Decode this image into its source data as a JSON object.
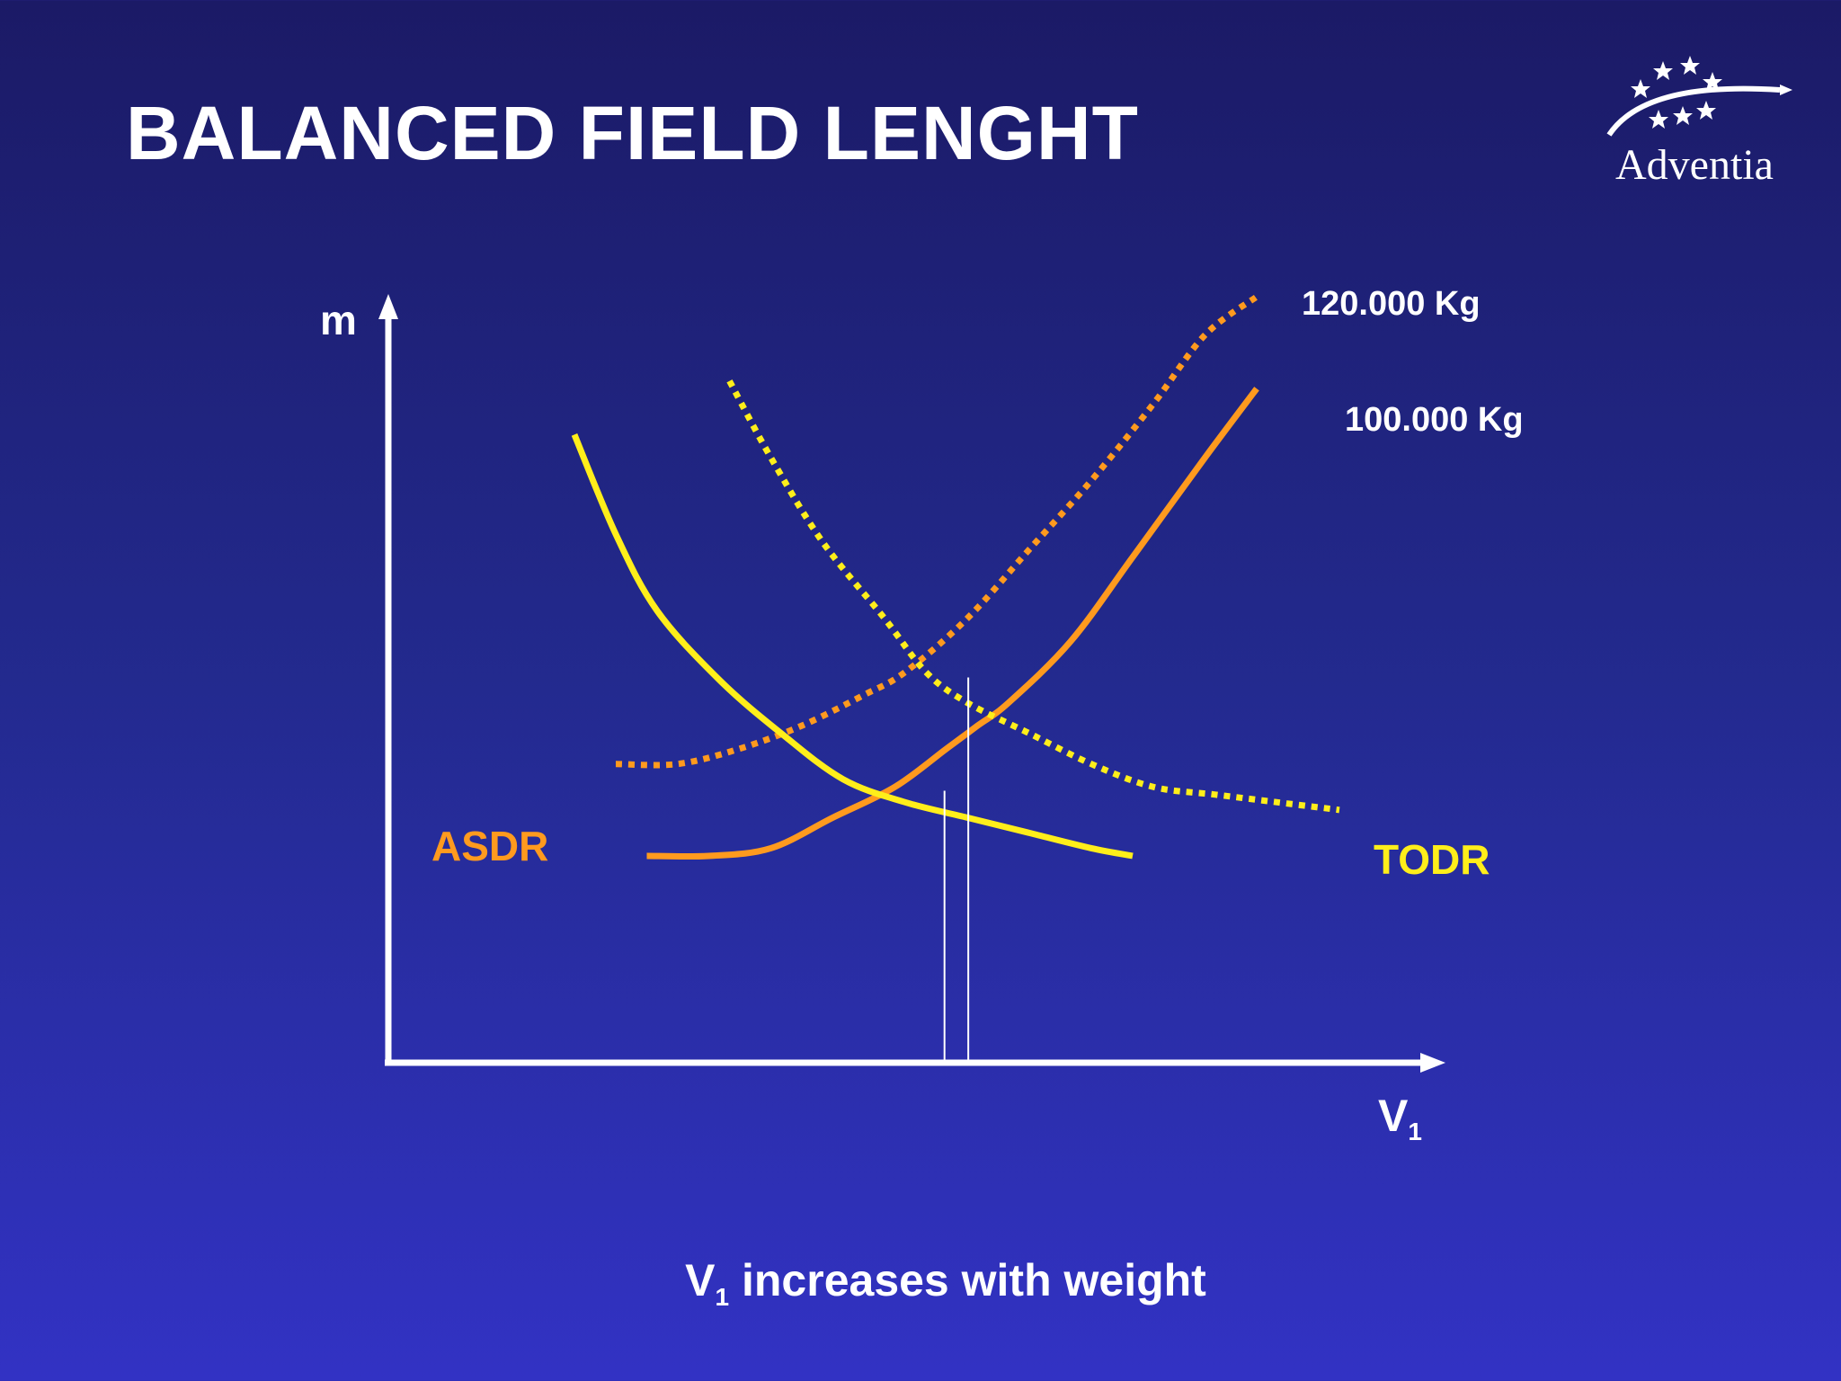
{
  "slide": {
    "title": "BALANCED FIELD LENGHT",
    "logo_text": "Adventia",
    "caption_main": "V",
    "caption_sub": "1",
    "caption_rest": " increases with weight"
  },
  "colors": {
    "asdr": "#ff9a1e",
    "todr": "#ffee1a",
    "axis": "#ffffff"
  },
  "chart_data": {
    "type": "line",
    "title": "",
    "xlabel": "V",
    "xlabel_sub": "1",
    "ylabel": "m",
    "xlim": [
      0,
      100
    ],
    "ylim": [
      0,
      100
    ],
    "grid": false,
    "series": [
      {
        "name": "ASDR",
        "weight_label": "100.000 Kg",
        "style": "solid",
        "color": "#ff9a1e",
        "x": [
          25,
          31,
          37,
          43,
          49,
          54,
          57,
          60,
          66,
          72,
          79,
          84
        ],
        "y": [
          27,
          27,
          28,
          32,
          36,
          41,
          44,
          47,
          55,
          66,
          79,
          88
        ]
      },
      {
        "name": "ASDR",
        "weight_label": "120.000 Kg",
        "style": "dotted",
        "color": "#ff9a1e",
        "x": [
          22,
          28,
          34,
          40,
          46,
          50,
          56,
          62,
          68,
          74,
          79,
          84
        ],
        "y": [
          39,
          39,
          41,
          44,
          48,
          51,
          58,
          67,
          76,
          86,
          95,
          100
        ]
      },
      {
        "name": "TODR",
        "weight_label": "100.000 Kg",
        "style": "solid",
        "color": "#ffee1a",
        "x": [
          18,
          22,
          26,
          32,
          38,
          44,
          50,
          56,
          62,
          68,
          72
        ],
        "y": [
          82,
          69,
          59,
          50,
          43,
          37,
          34,
          32,
          30,
          28,
          27
        ]
      },
      {
        "name": "TODR",
        "weight_label": "120.000 Kg",
        "style": "dotted",
        "color": "#ffee1a",
        "x": [
          33,
          37,
          42,
          48,
          52,
          56,
          62,
          68,
          74,
          80,
          86,
          92
        ],
        "y": [
          89,
          79,
          68,
          58,
          51,
          47,
          43,
          39,
          36,
          35,
          34,
          33
        ]
      }
    ],
    "series_labels": [
      {
        "text": "ASDR",
        "color": "#ff9a1e"
      },
      {
        "text": "TODR",
        "color": "#ffee1a"
      }
    ],
    "weight_labels": [
      "120.000 Kg",
      "100.000 Kg"
    ],
    "v1_markers": [
      {
        "x": 53.8,
        "y": 35.5,
        "weight_label": "100.000 Kg"
      },
      {
        "x": 56.1,
        "y": 50.3,
        "weight_label": "120.000 Kg"
      }
    ]
  }
}
